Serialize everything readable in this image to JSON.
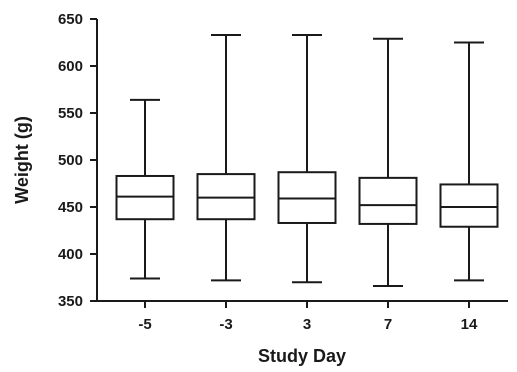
{
  "chart_data": {
    "type": "box",
    "title": "",
    "xlabel": "Study Day",
    "ylabel": "Weight (g)",
    "ylim": [
      350,
      650
    ],
    "yticks": [
      350,
      400,
      450,
      500,
      550,
      600,
      650
    ],
    "categories": [
      "-5",
      "-3",
      "3",
      "7",
      "14"
    ],
    "boxes": [
      {
        "category": "-5",
        "min": 374,
        "q1": 437,
        "median": 461,
        "q3": 483,
        "max": 564
      },
      {
        "category": "-3",
        "min": 372,
        "q1": 437,
        "median": 460,
        "q3": 485,
        "max": 633
      },
      {
        "category": "3",
        "min": 370,
        "q1": 433,
        "median": 459,
        "q3": 487,
        "max": 633
      },
      {
        "category": "7",
        "min": 366,
        "q1": 432,
        "median": 452,
        "q3": 481,
        "max": 629
      },
      {
        "category": "14",
        "min": 372,
        "q1": 429,
        "median": 450,
        "q3": 474,
        "max": 625
      }
    ],
    "grid": false,
    "legend": "none",
    "colors": {
      "stroke": "#1a1a1a",
      "fill": "#ffffff"
    }
  }
}
